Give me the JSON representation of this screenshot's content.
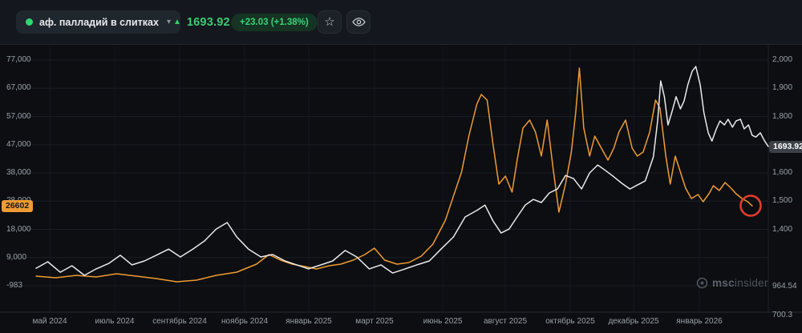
{
  "header": {
    "instrument": {
      "name": "аф. палладий в слитках",
      "status_dot_color": "#2bd96f"
    },
    "price": {
      "value": "1693.92",
      "change": "+23.03 (+1.38%)",
      "direction": "up"
    }
  },
  "icons": {
    "dropdown": "▾",
    "up_triangle": "▲",
    "star": "☆"
  },
  "colors": {
    "background": "#0c0e11",
    "header_background": "#14181e",
    "accent_green": "#3bcb72",
    "series_orange": "#ef9b33",
    "series_white": "#e9eaec",
    "annotation_red": "#e23b2e",
    "gridline": "#191d24"
  },
  "watermark": {
    "text_bold": "msc",
    "text_light": "insider"
  },
  "annotations": [
    {
      "type": "circle",
      "color": "#e23b2e",
      "target": "orange-series-end"
    }
  ],
  "chart_data": {
    "type": "line",
    "title": "аф. палладий в слитках",
    "grid": true,
    "legend_position": "none",
    "x_axis": {
      "labels": [
        "май 2024",
        "июль 2024",
        "сентябрь 2024",
        "ноябрь 2024",
        "январь 2025",
        "март 2025",
        "июнь 2025",
        "август 2025",
        "октябрь 2025",
        "декабрь 2025",
        "январь 2026"
      ]
    },
    "left_axis": {
      "range": [
        77000,
        -983
      ],
      "ticks": [
        "77,000",
        "67,000",
        "57,000",
        "47,000",
        "38,000",
        "28,000",
        "18,000",
        "9,000",
        "-983"
      ]
    },
    "right_axis": {
      "range": [
        2000,
        1200
      ],
      "ticks": [
        {
          "value": 2000,
          "label": "2,000"
        },
        {
          "value": 1900,
          "label": "1,900"
        },
        {
          "value": 1800,
          "label": "1,800"
        },
        {
          "value": 1600,
          "label": "1,600"
        },
        {
          "value": 1500,
          "label": "1,500"
        },
        {
          "value": 1400,
          "label": "1,400"
        }
      ],
      "extra_labels": [
        "964.54",
        "700.3"
      ]
    },
    "series": [
      {
        "id": "left-axis-series",
        "axis": "left",
        "color": "#ef9b33",
        "last_value": 26602,
        "last_label": "26602",
        "points": [
          [
            0,
            2345
          ],
          [
            0.027,
            1790
          ],
          [
            0.055,
            2620
          ],
          [
            0.082,
            2070
          ],
          [
            0.11,
            3175
          ],
          [
            0.137,
            2345
          ],
          [
            0.164,
            1515
          ],
          [
            0.192,
            410
          ],
          [
            0.219,
            960
          ],
          [
            0.246,
            2620
          ],
          [
            0.274,
            3730
          ],
          [
            0.301,
            6490
          ],
          [
            0.318,
            9810
          ],
          [
            0.334,
            7875
          ],
          [
            0.35,
            6490
          ],
          [
            0.367,
            5665
          ],
          [
            0.383,
            4835
          ],
          [
            0.4,
            5940
          ],
          [
            0.416,
            6490
          ],
          [
            0.433,
            7875
          ],
          [
            0.449,
            9810
          ],
          [
            0.462,
            12025
          ],
          [
            0.476,
            7875
          ],
          [
            0.493,
            6490
          ],
          [
            0.509,
            7045
          ],
          [
            0.526,
            9260
          ],
          [
            0.542,
            13405
          ],
          [
            0.559,
            21700
          ],
          [
            0.57,
            29995
          ],
          [
            0.581,
            38290
          ],
          [
            0.591,
            50730
          ],
          [
            0.602,
            61790
          ],
          [
            0.608,
            65110
          ],
          [
            0.616,
            63175
          ],
          [
            0.624,
            47970
          ],
          [
            0.632,
            34140
          ],
          [
            0.641,
            36905
          ],
          [
            0.65,
            31375
          ],
          [
            0.657,
            42440
          ],
          [
            0.665,
            53500
          ],
          [
            0.674,
            56265
          ],
          [
            0.682,
            52115
          ],
          [
            0.69,
            43820
          ],
          [
            0.698,
            56265
          ],
          [
            0.706,
            39670
          ],
          [
            0.714,
            24465
          ],
          [
            0.723,
            34140
          ],
          [
            0.731,
            45205
          ],
          [
            0.737,
            59030
          ],
          [
            0.742,
            74235
          ],
          [
            0.748,
            53500
          ],
          [
            0.756,
            43820
          ],
          [
            0.763,
            50730
          ],
          [
            0.772,
            46585
          ],
          [
            0.781,
            42440
          ],
          [
            0.789,
            46585
          ],
          [
            0.796,
            52115
          ],
          [
            0.805,
            56265
          ],
          [
            0.814,
            46585
          ],
          [
            0.821,
            43820
          ],
          [
            0.829,
            45205
          ],
          [
            0.838,
            52115
          ],
          [
            0.846,
            63175
          ],
          [
            0.852,
            60410
          ],
          [
            0.86,
            43820
          ],
          [
            0.866,
            34140
          ],
          [
            0.873,
            43820
          ],
          [
            0.88,
            38290
          ],
          [
            0.887,
            32760
          ],
          [
            0.895,
            29165
          ],
          [
            0.904,
            30550
          ],
          [
            0.911,
            28060
          ],
          [
            0.919,
            30825
          ],
          [
            0.925,
            33590
          ],
          [
            0.933,
            31930
          ],
          [
            0.941,
            34695
          ],
          [
            0.949,
            32760
          ],
          [
            0.956,
            30825
          ],
          [
            0.964,
            29165
          ],
          [
            0.972,
            28060
          ],
          [
            0.978,
            26602
          ]
        ]
      },
      {
        "id": "right-axis-series",
        "axis": "right",
        "color": "#e9eaec",
        "last_value": 1693.92,
        "last_label": "1693.92",
        "points": [
          [
            0,
            1262
          ],
          [
            0.016,
            1285
          ],
          [
            0.033,
            1248
          ],
          [
            0.049,
            1271
          ],
          [
            0.066,
            1237
          ],
          [
            0.082,
            1260
          ],
          [
            0.099,
            1279
          ],
          [
            0.115,
            1308
          ],
          [
            0.131,
            1274
          ],
          [
            0.148,
            1288
          ],
          [
            0.164,
            1308
          ],
          [
            0.181,
            1330
          ],
          [
            0.197,
            1302
          ],
          [
            0.214,
            1330
          ],
          [
            0.23,
            1359
          ],
          [
            0.246,
            1401
          ],
          [
            0.261,
            1424
          ],
          [
            0.274,
            1373
          ],
          [
            0.29,
            1330
          ],
          [
            0.307,
            1302
          ],
          [
            0.323,
            1311
          ],
          [
            0.34,
            1288
          ],
          [
            0.356,
            1274
          ],
          [
            0.372,
            1260
          ],
          [
            0.389,
            1274
          ],
          [
            0.405,
            1288
          ],
          [
            0.422,
            1325
          ],
          [
            0.438,
            1302
          ],
          [
            0.455,
            1260
          ],
          [
            0.471,
            1274
          ],
          [
            0.487,
            1245
          ],
          [
            0.504,
            1260
          ],
          [
            0.52,
            1274
          ],
          [
            0.537,
            1288
          ],
          [
            0.553,
            1330
          ],
          [
            0.57,
            1373
          ],
          [
            0.586,
            1444
          ],
          [
            0.602,
            1467
          ],
          [
            0.613,
            1486
          ],
          [
            0.624,
            1430
          ],
          [
            0.635,
            1387
          ],
          [
            0.646,
            1401
          ],
          [
            0.657,
            1444
          ],
          [
            0.668,
            1486
          ],
          [
            0.679,
            1506
          ],
          [
            0.69,
            1495
          ],
          [
            0.701,
            1529
          ],
          [
            0.712,
            1543
          ],
          [
            0.723,
            1591
          ],
          [
            0.734,
            1580
          ],
          [
            0.745,
            1543
          ],
          [
            0.756,
            1600
          ],
          [
            0.767,
            1628
          ],
          [
            0.778,
            1608
          ],
          [
            0.789,
            1586
          ],
          [
            0.8,
            1563
          ],
          [
            0.811,
            1543
          ],
          [
            0.821,
            1557
          ],
          [
            0.832,
            1572
          ],
          [
            0.843,
            1657
          ],
          [
            0.849,
            1787
          ],
          [
            0.853,
            1926
          ],
          [
            0.858,
            1870
          ],
          [
            0.863,
            1770
          ],
          [
            0.868,
            1813
          ],
          [
            0.874,
            1870
          ],
          [
            0.88,
            1827
          ],
          [
            0.885,
            1855
          ],
          [
            0.89,
            1912
          ],
          [
            0.896,
            1960
          ],
          [
            0.901,
            1977
          ],
          [
            0.907,
            1912
          ],
          [
            0.912,
            1813
          ],
          [
            0.918,
            1742
          ],
          [
            0.923,
            1713
          ],
          [
            0.929,
            1756
          ],
          [
            0.934,
            1784
          ],
          [
            0.94,
            1770
          ],
          [
            0.945,
            1790
          ],
          [
            0.951,
            1762
          ],
          [
            0.956,
            1784
          ],
          [
            0.962,
            1790
          ],
          [
            0.967,
            1756
          ],
          [
            0.973,
            1770
          ],
          [
            0.978,
            1733
          ],
          [
            0.983,
            1727
          ],
          [
            0.989,
            1742
          ],
          [
            0.995,
            1713
          ],
          [
            1,
            1694
          ]
        ]
      }
    ]
  }
}
